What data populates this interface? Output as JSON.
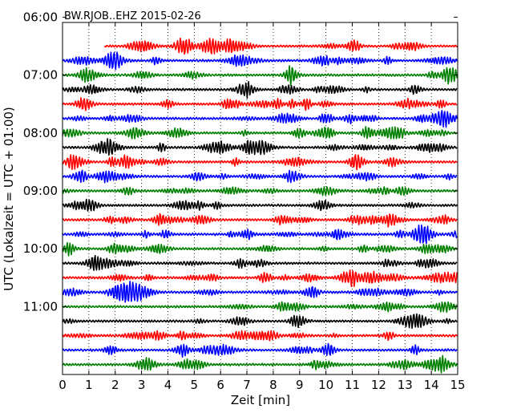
{
  "chart_data": {
    "type": "line",
    "title": "BW.RJOB..EHZ 2015-02-26",
    "xlabel": "Zeit  [min]",
    "ylabel": "UTC (Lokalzeit = UTC + 01:00)",
    "xlim": [
      0,
      15
    ],
    "x_ticks": [
      "0",
      "1",
      "2",
      "3",
      "4",
      "5",
      "6",
      "7",
      "8",
      "9",
      "10",
      "11",
      "12",
      "13",
      "14",
      "15"
    ],
    "y_ticks": [
      "06:00",
      "07:00",
      "08:00",
      "09:00",
      "10:00",
      "11:00"
    ],
    "grid": "vertical dotted lines at each minute",
    "trace_interval_min": 15,
    "first_trace_start_min": 1.6,
    "traces": [
      {
        "start": "06:15",
        "color": "#ff0000"
      },
      {
        "start": "06:30",
        "color": "#0000ff"
      },
      {
        "start": "06:45",
        "color": "#008000"
      },
      {
        "start": "07:00",
        "color": "#000000"
      },
      {
        "start": "07:15",
        "color": "#ff0000"
      },
      {
        "start": "07:30",
        "color": "#0000ff"
      },
      {
        "start": "07:45",
        "color": "#008000"
      },
      {
        "start": "08:00",
        "color": "#000000"
      },
      {
        "start": "08:15",
        "color": "#ff0000"
      },
      {
        "start": "08:30",
        "color": "#0000ff"
      },
      {
        "start": "08:45",
        "color": "#008000"
      },
      {
        "start": "09:00",
        "color": "#000000"
      },
      {
        "start": "09:15",
        "color": "#ff0000"
      },
      {
        "start": "09:30",
        "color": "#0000ff"
      },
      {
        "start": "09:45",
        "color": "#008000"
      },
      {
        "start": "10:00",
        "color": "#000000"
      },
      {
        "start": "10:15",
        "color": "#ff0000"
      },
      {
        "start": "10:30",
        "color": "#0000ff"
      },
      {
        "start": "10:45",
        "color": "#008000"
      },
      {
        "start": "11:00",
        "color": "#000000"
      },
      {
        "start": "11:15",
        "color": "#ff0000"
      },
      {
        "start": "11:30",
        "color": "#0000ff"
      },
      {
        "start": "11:45",
        "color": "#008000"
      }
    ]
  }
}
